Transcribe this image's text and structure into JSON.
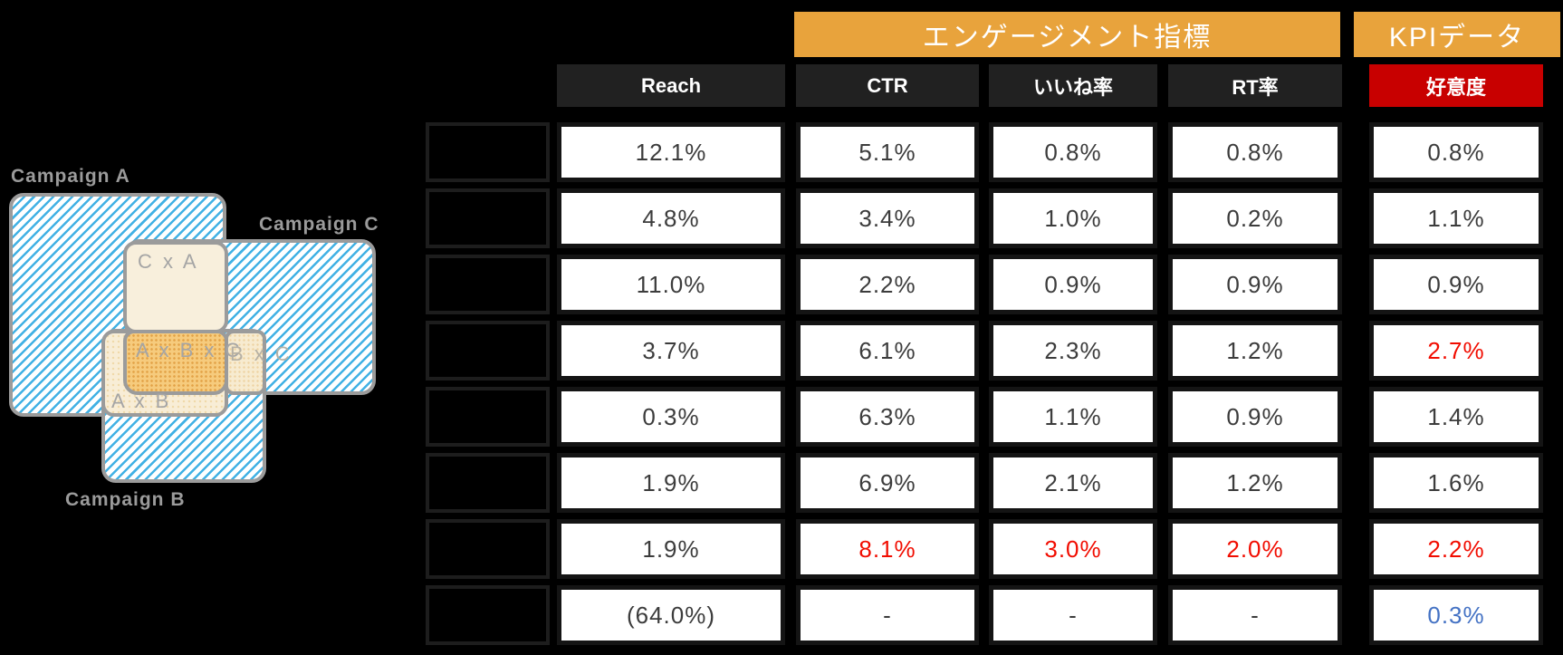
{
  "colors": {
    "background": "#000000",
    "banner_orange": "#E8A33C",
    "header_dark": "#212121",
    "header_red": "#C80000",
    "cell_text_default": "#3C3C3C",
    "cell_text_red": "#F10C00",
    "cell_text_blue": "#4472C4",
    "venn_hatch_blue": "#41B1E4",
    "venn_border_gray": "#9B9B9B",
    "venn_overlap_cream": "#F8EFDC",
    "venn_overlap_orange": "#F6CB7D",
    "venn_label_gray": "#9B9B9B"
  },
  "venn": {
    "set_labels": [
      "Campaign A",
      "Campaign B",
      "Campaign C"
    ],
    "region_labels": {
      "ca": "C x A",
      "abc": "A x B x C",
      "bc": "B x C",
      "ab": "A x B"
    }
  },
  "table": {
    "banners": [
      {
        "label": "エンゲージメント指標"
      },
      {
        "label": "KPIデータ"
      }
    ],
    "columns": [
      {
        "label": "Reach"
      },
      {
        "label": "CTR"
      },
      {
        "label": "いいね率"
      },
      {
        "label": "RT率"
      },
      {
        "label": "好意度"
      }
    ],
    "rows": [
      {
        "cells": [
          {
            "text": "12.1%",
            "tone": "default"
          },
          {
            "text": "5.1%",
            "tone": "default"
          },
          {
            "text": "0.8%",
            "tone": "default"
          },
          {
            "text": "0.8%",
            "tone": "default"
          },
          {
            "text": "0.8%",
            "tone": "default"
          }
        ]
      },
      {
        "cells": [
          {
            "text": "4.8%",
            "tone": "default"
          },
          {
            "text": "3.4%",
            "tone": "default"
          },
          {
            "text": "1.0%",
            "tone": "default"
          },
          {
            "text": "0.2%",
            "tone": "default"
          },
          {
            "text": "1.1%",
            "tone": "default"
          }
        ]
      },
      {
        "cells": [
          {
            "text": "11.0%",
            "tone": "default"
          },
          {
            "text": "2.2%",
            "tone": "default"
          },
          {
            "text": "0.9%",
            "tone": "default"
          },
          {
            "text": "0.9%",
            "tone": "default"
          },
          {
            "text": "0.9%",
            "tone": "default"
          }
        ]
      },
      {
        "cells": [
          {
            "text": "3.7%",
            "tone": "default"
          },
          {
            "text": "6.1%",
            "tone": "default"
          },
          {
            "text": "2.3%",
            "tone": "default"
          },
          {
            "text": "1.2%",
            "tone": "default"
          },
          {
            "text": "2.7%",
            "tone": "red"
          }
        ]
      },
      {
        "cells": [
          {
            "text": "0.3%",
            "tone": "default"
          },
          {
            "text": "6.3%",
            "tone": "default"
          },
          {
            "text": "1.1%",
            "tone": "default"
          },
          {
            "text": "0.9%",
            "tone": "default"
          },
          {
            "text": "1.4%",
            "tone": "default"
          }
        ]
      },
      {
        "cells": [
          {
            "text": "1.9%",
            "tone": "default"
          },
          {
            "text": "6.9%",
            "tone": "default"
          },
          {
            "text": "2.1%",
            "tone": "default"
          },
          {
            "text": "1.2%",
            "tone": "default"
          },
          {
            "text": "1.6%",
            "tone": "default"
          }
        ]
      },
      {
        "cells": [
          {
            "text": "1.9%",
            "tone": "default"
          },
          {
            "text": "8.1%",
            "tone": "red"
          },
          {
            "text": "3.0%",
            "tone": "red"
          },
          {
            "text": "2.0%",
            "tone": "red"
          },
          {
            "text": "2.2%",
            "tone": "red"
          }
        ]
      },
      {
        "cells": [
          {
            "text": "(64.0%)",
            "tone": "default"
          },
          {
            "text": "-",
            "tone": "default"
          },
          {
            "text": "-",
            "tone": "default"
          },
          {
            "text": "-",
            "tone": "default"
          },
          {
            "text": "0.3%",
            "tone": "blue"
          }
        ]
      }
    ]
  },
  "chart_data": {
    "type": "table",
    "title": "",
    "column_groups": [
      {
        "label": "エンゲージメント指標",
        "columns": [
          "CTR",
          "いいね率",
          "RT率"
        ]
      },
      {
        "label": "KPIデータ",
        "columns": [
          "好意度"
        ]
      }
    ],
    "columns": [
      "Reach",
      "CTR",
      "いいね率",
      "RT率",
      "好意度"
    ],
    "rows": [
      {
        "label": "",
        "values": [
          "12.1%",
          "5.1%",
          "0.8%",
          "0.8%",
          "0.8%"
        ]
      },
      {
        "label": "",
        "values": [
          "4.8%",
          "3.4%",
          "1.0%",
          "0.2%",
          "1.1%"
        ]
      },
      {
        "label": "",
        "values": [
          "11.0%",
          "2.2%",
          "0.9%",
          "0.9%",
          "0.9%"
        ]
      },
      {
        "label": "",
        "values": [
          "3.7%",
          "6.1%",
          "2.3%",
          "1.2%",
          "2.7%"
        ]
      },
      {
        "label": "",
        "values": [
          "0.3%",
          "6.3%",
          "1.1%",
          "0.9%",
          "1.4%"
        ]
      },
      {
        "label": "",
        "values": [
          "1.9%",
          "6.9%",
          "2.1%",
          "1.2%",
          "1.6%"
        ]
      },
      {
        "label": "",
        "values": [
          "1.9%",
          "8.1%",
          "3.0%",
          "2.0%",
          "2.2%"
        ]
      },
      {
        "label": "",
        "values": [
          "(64.0%)",
          "-",
          "-",
          "-",
          "0.3%"
        ]
      }
    ],
    "highlight_red_cells": [
      [
        3,
        4
      ],
      [
        6,
        1
      ],
      [
        6,
        2
      ],
      [
        6,
        3
      ],
      [
        6,
        4
      ]
    ],
    "highlight_blue_cells": [
      [
        7,
        4
      ]
    ],
    "venn_sets": [
      "Campaign A",
      "Campaign B",
      "Campaign C"
    ],
    "venn_overlaps": [
      "C x A",
      "A x B x C",
      "B x C",
      "A x B"
    ]
  }
}
